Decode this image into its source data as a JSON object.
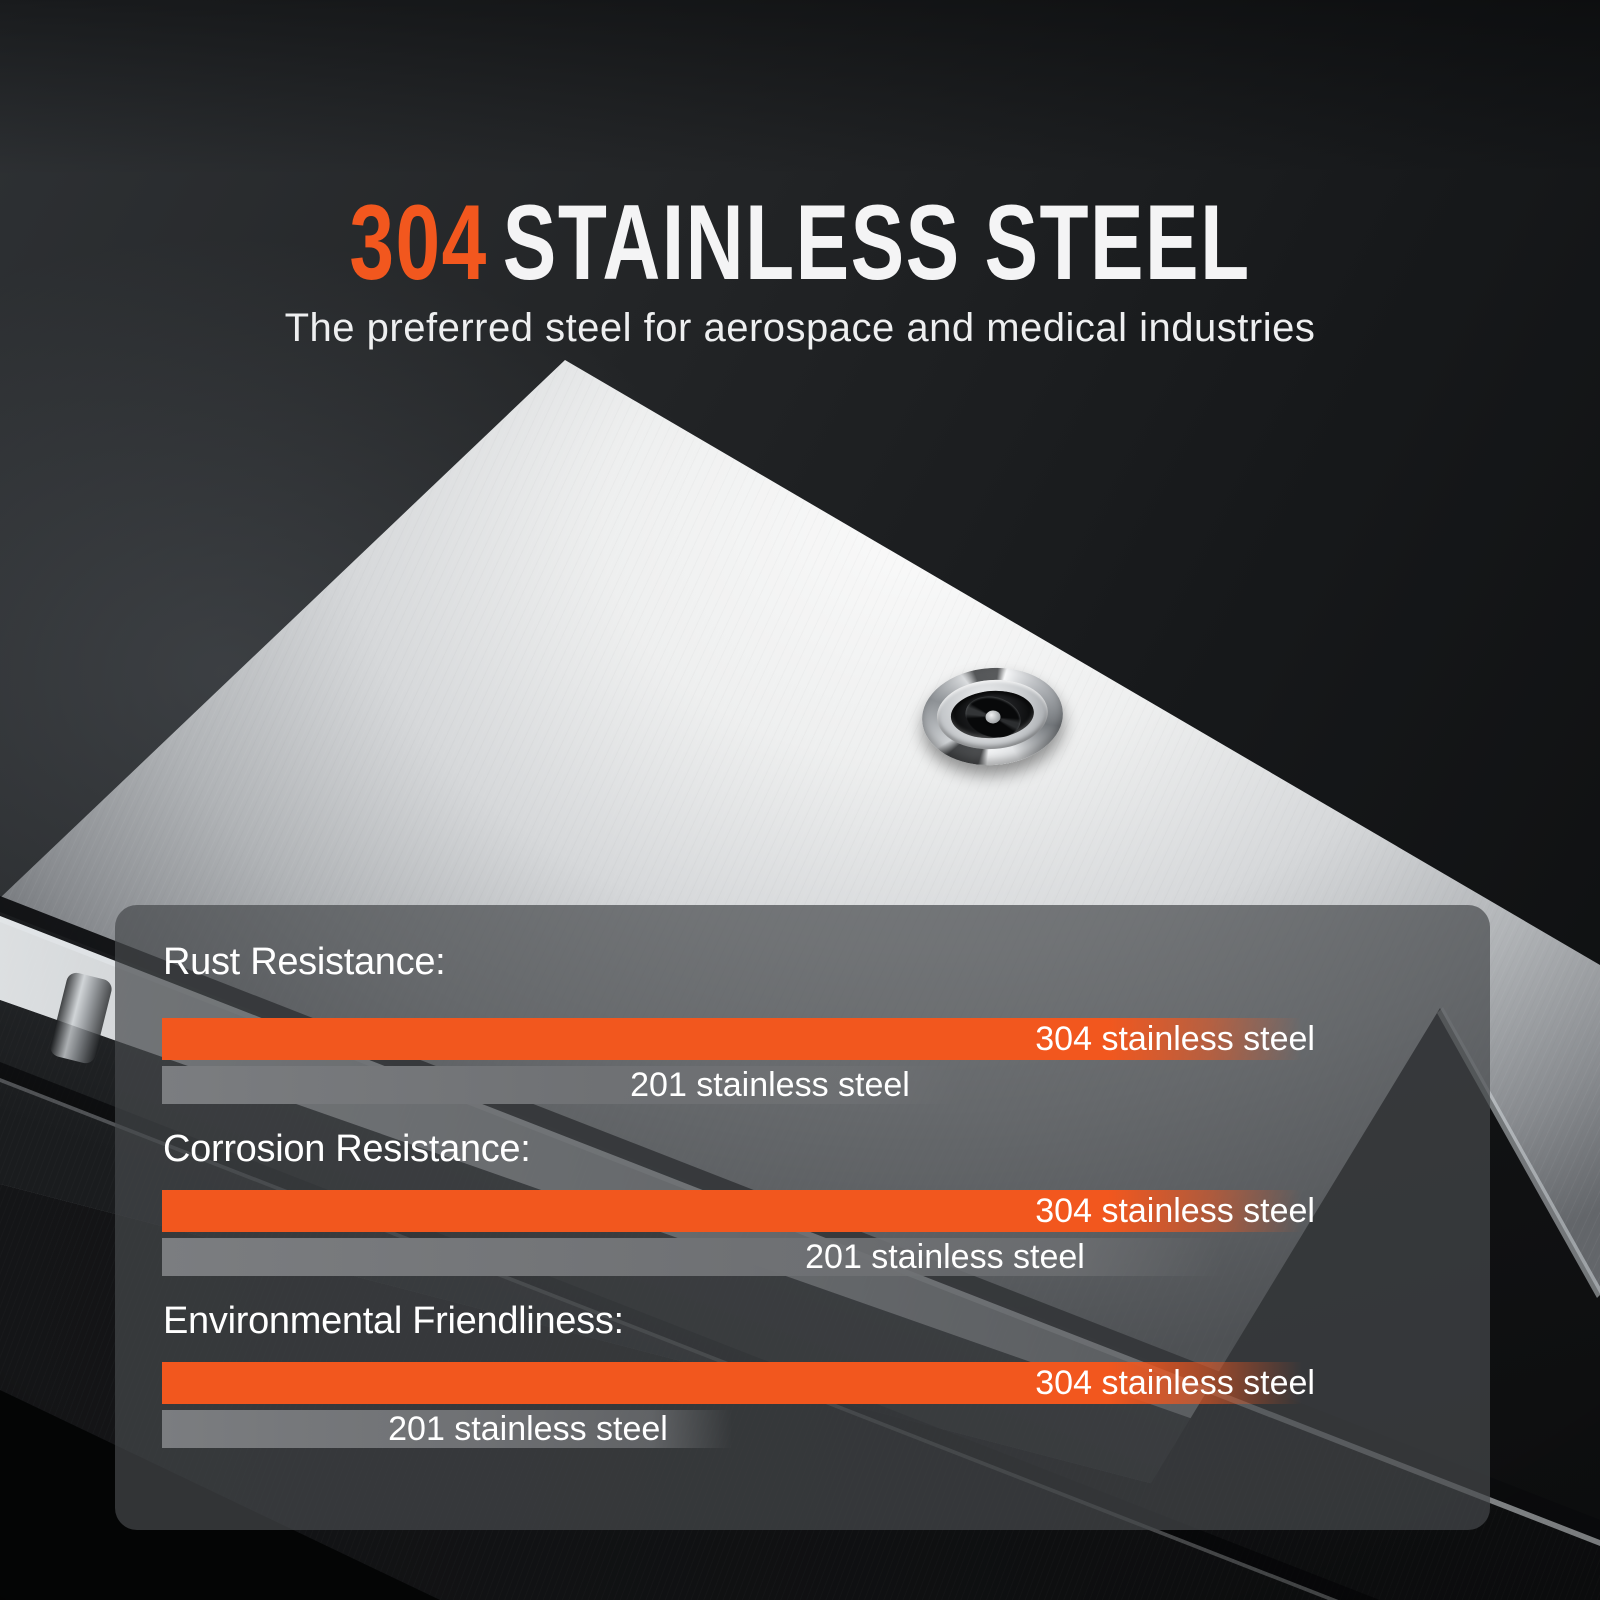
{
  "header": {
    "title_accent": "304",
    "title_main": "STAINLESS STEEL",
    "subtitle": "The preferred steel for aerospace and medical industries"
  },
  "panel": {
    "sections": [
      {
        "label": "Rust Resistance:"
      },
      {
        "label": "Corrosion Resistance:"
      },
      {
        "label": "Environmental Friendliness:"
      }
    ]
  },
  "chart_data": {
    "type": "bar",
    "title": "304 STAINLESS STEEL",
    "subtitle": "The preferred steel for aerospace and medical industries",
    "orientation": "horizontal",
    "categories": [
      "Rust Resistance",
      "Corrosion Resistance",
      "Environmental Friendliness"
    ],
    "series": [
      {
        "name": "304 stainless steel",
        "color": "#F2571E",
        "values": [
          100,
          100,
          100
        ]
      },
      {
        "name": "201 stainless steel",
        "color": "#6F7174",
        "values": [
          70,
          93,
          50
        ]
      }
    ],
    "value_meaning": "relative bar length in percent of full bar; longer = better; no numeric axis shown",
    "grid": false,
    "legend_position": "labels drawn on bars"
  },
  "colors": {
    "accent_orange": "#F2571E",
    "bar_gray": "#6F7174",
    "panel_background": "rgba(70,72,76,0.7)",
    "text_white": "#FFFFFF",
    "background_dark": "#1B1D1F"
  }
}
